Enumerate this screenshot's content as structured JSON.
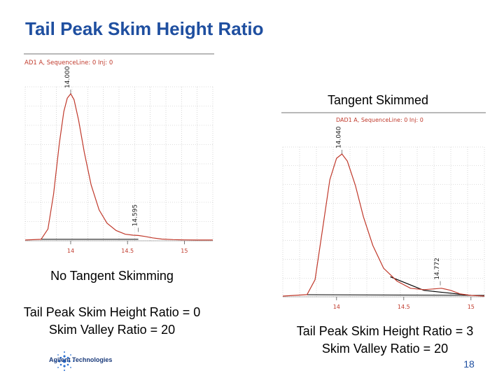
{
  "slide": {
    "title": "Tail Peak Skim Height Ratio",
    "page_number": "18",
    "logo_text": "Agilent Technologies"
  },
  "left": {
    "caption": "No Tangent Skimming",
    "ratio_line": "Tail Peak Skim Height Ratio = 0",
    "valley_line": "Skim Valley Ratio = 20"
  },
  "right": {
    "caption": "Tangent Skimmed",
    "ratio_line": "Tail Peak Skim Height Ratio = 3",
    "valley_line": "Skim Valley Ratio = 20"
  },
  "colors": {
    "title": "#1f4fa0",
    "trace": "#c0392b",
    "baseline": "#000000",
    "grid": "#bdbdbd",
    "tick_label": "#c0392b"
  },
  "chart_data": [
    {
      "type": "line",
      "header": "AD1 A, SequenceLine: 0 Inj: 0",
      "x_ticks": [
        "14",
        "14.5",
        "15"
      ],
      "x_tick_values": [
        14,
        14.5,
        15
      ],
      "xlim": [
        13.6,
        15.25
      ],
      "ylim": [
        0,
        100
      ],
      "peak_labels": [
        {
          "text": "14.000",
          "x": 14.0,
          "y": 100
        },
        {
          "text": "14.595",
          "x": 14.595,
          "y": 6
        }
      ],
      "series": [
        {
          "x": [
            13.6,
            13.74,
            13.8,
            13.85,
            13.9,
            13.94,
            13.97,
            14.0,
            14.03,
            14.07,
            14.12,
            14.18,
            14.25,
            14.32,
            14.4,
            14.48,
            14.55,
            14.595,
            14.65,
            14.72,
            14.8,
            14.9,
            15.0,
            15.1,
            15.25
          ],
          "y": [
            0.5,
            1,
            8,
            32,
            66,
            88,
            97,
            100,
            96,
            82,
            60,
            38,
            21,
            12,
            7,
            4.5,
            3.8,
            3.6,
            3,
            2,
            1.2,
            0.8,
            0.6,
            0.5,
            0.5
          ]
        }
      ],
      "baseline": {
        "x": [
          13.74,
          14.595
        ],
        "y": [
          1,
          1
        ]
      },
      "grid": true
    },
    {
      "type": "line",
      "header": "DAD1 A, SequenceLine: 0 Inj: 0",
      "x_ticks": [
        "14",
        "14.5",
        "15"
      ],
      "x_tick_values": [
        14,
        14.5,
        15
      ],
      "xlim": [
        13.6,
        15.1
      ],
      "ylim": [
        0,
        100
      ],
      "peak_labels": [
        {
          "text": "14.040",
          "x": 14.04,
          "y": 100
        },
        {
          "text": "14.772",
          "x": 14.772,
          "y": 8
        }
      ],
      "series": [
        {
          "x": [
            13.6,
            13.78,
            13.84,
            13.9,
            13.95,
            14.0,
            14.04,
            14.08,
            14.14,
            14.2,
            14.27,
            14.35,
            14.45,
            14.55,
            14.65,
            14.72,
            14.78,
            14.85,
            14.92,
            15.0,
            15.1
          ],
          "y": [
            0.5,
            1.5,
            12,
            50,
            82,
            97,
            100,
            95,
            78,
            56,
            36,
            20,
            11,
            6,
            5,
            5.5,
            6,
            4.5,
            2,
            1,
            0.5
          ]
        }
      ],
      "baseline": {
        "x": [
          13.78,
          15.1
        ],
        "y": [
          1.5,
          1
        ]
      },
      "skim_tangent": {
        "x": [
          14.4,
          14.65,
          15.0
        ],
        "y": [
          14,
          4.5,
          1
        ]
      },
      "grid": true
    }
  ]
}
